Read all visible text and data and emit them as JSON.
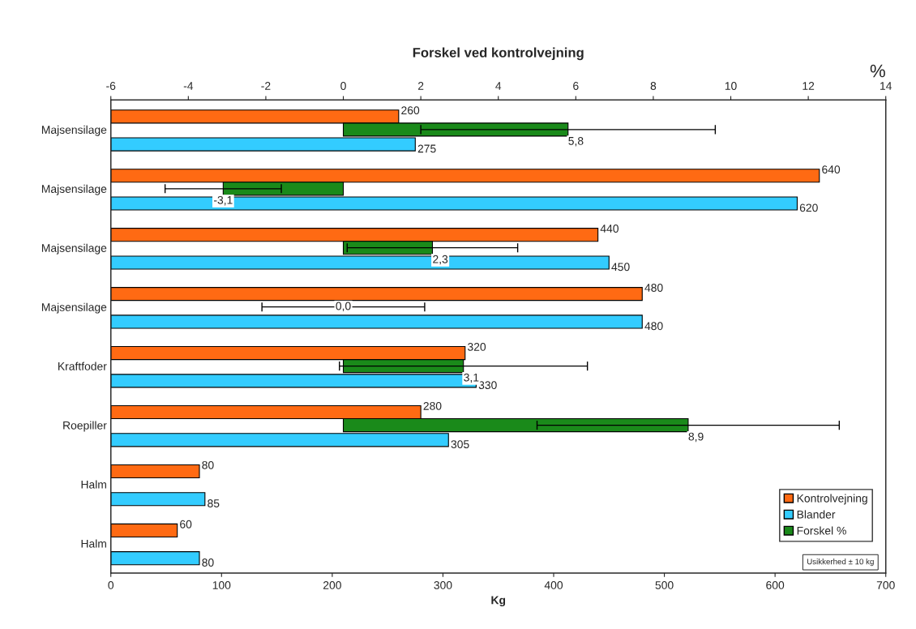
{
  "chart_data": {
    "type": "bar",
    "orientation": "horizontal",
    "title": "Forskel ved kontrolvejning",
    "xlabel": "Kg",
    "x2label": "%",
    "categories": [
      "Majsensilage",
      "Majsensilage",
      "Majsensilage",
      "Majsensilage",
      "Kraftfoder",
      "Roepiller",
      "Halm",
      "Halm"
    ],
    "series": [
      {
        "name": "Kontrolvejning",
        "color": "#ff6a13",
        "values": [
          260,
          640,
          440,
          480,
          320,
          280,
          80,
          60
        ],
        "value_labels": [
          "260",
          "640",
          "440",
          "480",
          "320",
          "280",
          "80",
          "60"
        ]
      },
      {
        "name": "Blander",
        "color": "#33ccff",
        "values": [
          275,
          620,
          450,
          480,
          330,
          305,
          85,
          80
        ],
        "value_labels": [
          "275",
          "620",
          "450",
          "480",
          "330",
          "305",
          "85",
          "80"
        ]
      },
      {
        "name": "Forskel %",
        "color": "#1a8a1a",
        "axis": "x2",
        "values": [
          5.8,
          -3.1,
          2.3,
          0.0,
          3.1,
          8.9,
          null,
          null
        ],
        "errors": [
          3.8,
          1.5,
          2.2,
          2.1,
          3.2,
          3.9,
          null,
          null
        ],
        "value_labels": [
          "5,8",
          "-3,1",
          "2,3",
          "0,0",
          "3,1",
          "8,9",
          null,
          null
        ]
      }
    ],
    "xlim": [
      0,
      700
    ],
    "xticks": [
      0,
      100,
      200,
      300,
      400,
      500,
      600,
      700
    ],
    "x2lim": [
      -6,
      14
    ],
    "x2ticks": [
      -6,
      -4,
      -2,
      0,
      2,
      4,
      6,
      8,
      10,
      12,
      14
    ],
    "grid": false,
    "legend": "bottom right",
    "annotations": [
      "Usikkerhed ± 10 kg"
    ]
  }
}
